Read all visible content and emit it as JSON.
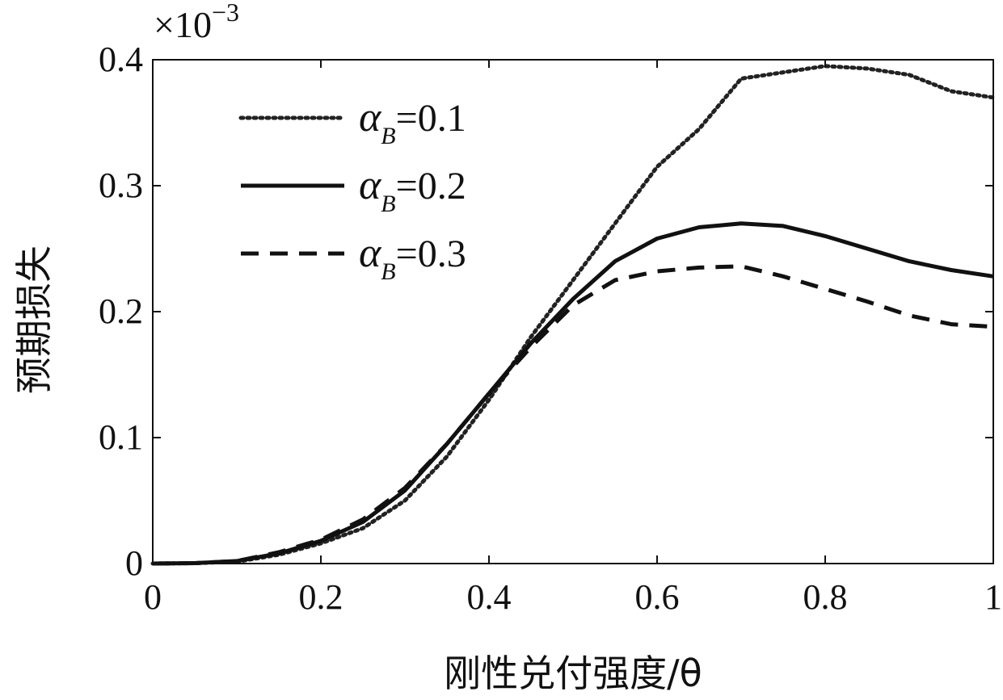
{
  "chart_data": {
    "type": "line",
    "xlabel": "刚性兑付强度/θ",
    "ylabel": "预期损失",
    "y_multiplier": "×10",
    "y_multiplier_exp": "−3",
    "xlim": [
      0,
      1
    ],
    "ylim": [
      0,
      0.4
    ],
    "xticks": [
      0,
      0.2,
      0.4,
      0.6,
      0.8,
      1
    ],
    "xtick_labels": [
      "0",
      "0.2",
      "0.4",
      "0.6",
      "0.8",
      "1"
    ],
    "yticks": [
      0,
      0.1,
      0.2,
      0.3,
      0.4
    ],
    "ytick_labels": [
      "0",
      "0.1",
      "0.2",
      "0.3",
      "0.4"
    ],
    "grid": false,
    "legend_position": "top-left",
    "series": [
      {
        "name": "α_B=0.1",
        "legend_symbol": "α",
        "legend_subscript": "B",
        "legend_value": "=0.1",
        "style": "dotted",
        "color": "#222222",
        "x": [
          0,
          0.05,
          0.1,
          0.15,
          0.2,
          0.25,
          0.3,
          0.35,
          0.4,
          0.45,
          0.5,
          0.55,
          0.6,
          0.65,
          0.7,
          0.75,
          0.8,
          0.85,
          0.9,
          0.95,
          1.0
        ],
        "y": [
          0,
          0.0003,
          0.0015,
          0.007,
          0.016,
          0.028,
          0.05,
          0.085,
          0.13,
          0.18,
          0.225,
          0.27,
          0.315,
          0.345,
          0.385,
          0.39,
          0.395,
          0.393,
          0.388,
          0.375,
          0.37
        ]
      },
      {
        "name": "α_B=0.2",
        "legend_symbol": "α",
        "legend_subscript": "B",
        "legend_value": "=0.2",
        "style": "solid",
        "color": "#111111",
        "x": [
          0,
          0.05,
          0.1,
          0.15,
          0.2,
          0.25,
          0.3,
          0.35,
          0.4,
          0.45,
          0.5,
          0.55,
          0.6,
          0.65,
          0.7,
          0.75,
          0.8,
          0.85,
          0.9,
          0.95,
          1.0
        ],
        "y": [
          0,
          0.0003,
          0.002,
          0.008,
          0.018,
          0.033,
          0.058,
          0.095,
          0.135,
          0.175,
          0.21,
          0.24,
          0.258,
          0.267,
          0.27,
          0.268,
          0.26,
          0.25,
          0.24,
          0.233,
          0.228
        ]
      },
      {
        "name": "α_B=0.3",
        "legend_symbol": "α",
        "legend_subscript": "B",
        "legend_value": "=0.3",
        "style": "dashed",
        "color": "#111111",
        "x": [
          0,
          0.05,
          0.1,
          0.15,
          0.2,
          0.25,
          0.3,
          0.35,
          0.4,
          0.45,
          0.5,
          0.55,
          0.6,
          0.65,
          0.7,
          0.75,
          0.8,
          0.85,
          0.9,
          0.95,
          1.0
        ],
        "y": [
          0,
          0.0003,
          0.002,
          0.009,
          0.019,
          0.035,
          0.06,
          0.095,
          0.135,
          0.172,
          0.205,
          0.225,
          0.232,
          0.235,
          0.236,
          0.228,
          0.218,
          0.208,
          0.197,
          0.19,
          0.188
        ]
      }
    ]
  }
}
